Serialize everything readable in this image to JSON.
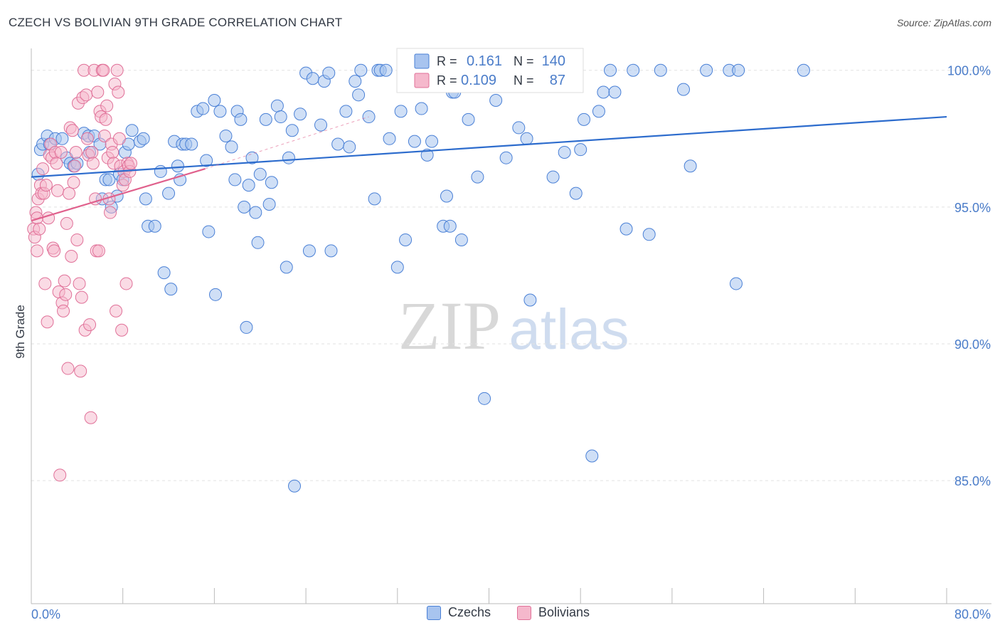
{
  "header": {
    "title": "CZECH VS BOLIVIAN 9TH GRADE CORRELATION CHART",
    "source": "Source: ZipAtlas.com"
  },
  "watermark": {
    "zip": "ZIP",
    "atlas": "atlas"
  },
  "colors": {
    "czech_fill": "#a8c4ef",
    "czech_stroke": "#4a80d6",
    "czech_line": "#2d6ccd",
    "bolivian_fill": "#f5b8cc",
    "bolivian_stroke": "#e07098",
    "bolivian_line": "#e0608c",
    "axis_value_text": "#4a7cc9",
    "grid": "#e2e2e2"
  },
  "legend": {
    "czech": {
      "r_label": "R =",
      "r_value": "0.161",
      "n_label": "N =",
      "n_value": "140"
    },
    "bolivian": {
      "r_label": "R =",
      "r_value": "0.109",
      "n_label": "N =",
      "n_value": "87"
    }
  },
  "bottom_legend": {
    "czech": "Czechs",
    "bolivian": "Bolivians"
  },
  "chart_data": {
    "type": "scatter",
    "title": "CZECH VS BOLIVIAN 9TH GRADE CORRELATION CHART",
    "xlabel": "",
    "ylabel": "9th Grade",
    "xlim": [
      0,
      80
    ],
    "ylim": [
      80.5,
      100.8
    ],
    "x_tick_labels": [
      "0.0%",
      "80.0%"
    ],
    "y_ticks": [
      85,
      90,
      95,
      100
    ],
    "y_tick_labels": [
      "85.0%",
      "90.0%",
      "95.0%",
      "100.0%"
    ],
    "x_minor_ticks": [
      0,
      8,
      16,
      24,
      32,
      40,
      48,
      56,
      64,
      72,
      80
    ],
    "grid": true,
    "series": [
      {
        "name": "Czechs",
        "R": 0.161,
        "N": 140,
        "trend": {
          "x": [
            0,
            80
          ],
          "y": [
            96.1,
            98.3
          ],
          "style": "solid"
        },
        "points": [
          [
            0.6,
            96.2
          ],
          [
            0.8,
            97.1
          ],
          [
            1.0,
            97.3
          ],
          [
            1.4,
            97.6
          ],
          [
            1.6,
            97.3
          ],
          [
            2.1,
            97.5
          ],
          [
            2.7,
            97.5
          ],
          [
            3.1,
            96.8
          ],
          [
            3.4,
            96.6
          ],
          [
            3.7,
            96.5
          ],
          [
            4.0,
            96.6
          ],
          [
            4.6,
            97.7
          ],
          [
            5.0,
            97.6
          ],
          [
            5.1,
            97.0
          ],
          [
            5.5,
            97.6
          ],
          [
            6.0,
            97.3
          ],
          [
            6.2,
            95.3
          ],
          [
            6.5,
            96.0
          ],
          [
            6.8,
            96.0
          ],
          [
            7.0,
            95.0
          ],
          [
            7.5,
            95.4
          ],
          [
            7.7,
            96.2
          ],
          [
            8.0,
            96.0
          ],
          [
            8.2,
            97.0
          ],
          [
            8.5,
            97.3
          ],
          [
            8.8,
            97.8
          ],
          [
            9.5,
            97.4
          ],
          [
            9.8,
            97.5
          ],
          [
            10.0,
            95.3
          ],
          [
            10.2,
            94.3
          ],
          [
            10.8,
            94.3
          ],
          [
            11.3,
            96.3
          ],
          [
            11.6,
            92.6
          ],
          [
            12.0,
            95.5
          ],
          [
            12.2,
            92.0
          ],
          [
            12.5,
            97.4
          ],
          [
            12.8,
            96.5
          ],
          [
            13.0,
            96.0
          ],
          [
            13.2,
            97.3
          ],
          [
            13.5,
            97.3
          ],
          [
            14.0,
            97.3
          ],
          [
            14.5,
            98.5
          ],
          [
            15.0,
            98.6
          ],
          [
            15.3,
            96.7
          ],
          [
            15.5,
            94.1
          ],
          [
            16.0,
            98.9
          ],
          [
            16.1,
            91.8
          ],
          [
            16.5,
            98.5
          ],
          [
            17.0,
            97.6
          ],
          [
            17.5,
            97.2
          ],
          [
            17.8,
            96.0
          ],
          [
            18.0,
            98.5
          ],
          [
            18.3,
            98.2
          ],
          [
            18.6,
            95.0
          ],
          [
            18.8,
            90.6
          ],
          [
            19.0,
            95.8
          ],
          [
            19.3,
            96.8
          ],
          [
            19.6,
            94.8
          ],
          [
            19.8,
            93.7
          ],
          [
            20.0,
            96.2
          ],
          [
            20.5,
            98.2
          ],
          [
            20.8,
            95.1
          ],
          [
            21.0,
            95.9
          ],
          [
            21.5,
            98.7
          ],
          [
            21.8,
            98.3
          ],
          [
            22.3,
            92.8
          ],
          [
            22.5,
            96.8
          ],
          [
            22.8,
            97.8
          ],
          [
            23.0,
            84.8
          ],
          [
            23.5,
            98.4
          ],
          [
            24.0,
            99.9
          ],
          [
            24.3,
            93.4
          ],
          [
            24.6,
            99.7
          ],
          [
            25.3,
            98.0
          ],
          [
            25.6,
            99.6
          ],
          [
            26.0,
            99.9
          ],
          [
            26.2,
            93.4
          ],
          [
            26.8,
            97.3
          ],
          [
            27.5,
            98.5
          ],
          [
            27.8,
            97.2
          ],
          [
            28.3,
            99.6
          ],
          [
            28.6,
            99.1
          ],
          [
            28.8,
            100.0
          ],
          [
            29.5,
            98.3
          ],
          [
            30.0,
            95.3
          ],
          [
            30.3,
            100.0
          ],
          [
            30.5,
            100.0
          ],
          [
            31.0,
            100.0
          ],
          [
            31.3,
            97.5
          ],
          [
            32.0,
            92.8
          ],
          [
            32.3,
            98.5
          ],
          [
            32.7,
            93.8
          ],
          [
            33.0,
            100.0
          ],
          [
            33.5,
            97.4
          ],
          [
            34.1,
            98.6
          ],
          [
            34.6,
            96.9
          ],
          [
            35.0,
            97.4
          ],
          [
            36.0,
            94.3
          ],
          [
            36.3,
            95.4
          ],
          [
            36.6,
            94.3
          ],
          [
            36.8,
            99.2
          ],
          [
            37.0,
            99.2
          ],
          [
            37.6,
            93.8
          ],
          [
            38.2,
            98.2
          ],
          [
            38.8,
            100.0
          ],
          [
            39.0,
            96.1
          ],
          [
            39.6,
            88.0
          ],
          [
            40.0,
            100.0
          ],
          [
            40.6,
            98.9
          ],
          [
            41.0,
            100.0
          ],
          [
            41.5,
            96.8
          ],
          [
            42.6,
            97.9
          ],
          [
            43.0,
            100.0
          ],
          [
            43.3,
            97.5
          ],
          [
            43.6,
            91.6
          ],
          [
            44.0,
            100.0
          ],
          [
            44.6,
            100.0
          ],
          [
            45.0,
            100.0
          ],
          [
            45.6,
            96.1
          ],
          [
            46.0,
            100.0
          ],
          [
            46.6,
            97.0
          ],
          [
            47.6,
            95.5
          ],
          [
            48.0,
            97.1
          ],
          [
            48.3,
            98.2
          ],
          [
            49.0,
            85.9
          ],
          [
            49.6,
            98.5
          ],
          [
            50.0,
            99.2
          ],
          [
            50.6,
            100.0
          ],
          [
            51.0,
            99.2
          ],
          [
            52.0,
            94.2
          ],
          [
            52.6,
            100.0
          ],
          [
            54.0,
            94.0
          ],
          [
            55.0,
            100.0
          ],
          [
            57.0,
            99.3
          ],
          [
            57.6,
            96.5
          ],
          [
            59.0,
            100.0
          ],
          [
            61.0,
            100.0
          ],
          [
            61.6,
            92.2
          ],
          [
            61.8,
            100.0
          ],
          [
            67.5,
            100.0
          ]
        ]
      },
      {
        "name": "Bolivians",
        "R": 0.109,
        "N": 87,
        "trend": {
          "x": [
            0,
            15.2
          ],
          "y": [
            94.5,
            96.4
          ],
          "style": "solid",
          "extension": {
            "x": [
              15.2,
              29.5
            ],
            "y": [
              96.4,
              98.3
            ],
            "style": "dashed"
          }
        },
        "points": [
          [
            0.2,
            94.2
          ],
          [
            0.3,
            93.9
          ],
          [
            0.4,
            94.8
          ],
          [
            0.5,
            93.4
          ],
          [
            0.5,
            94.6
          ],
          [
            0.6,
            95.3
          ],
          [
            0.7,
            94.2
          ],
          [
            0.8,
            95.8
          ],
          [
            0.9,
            95.5
          ],
          [
            1.0,
            96.4
          ],
          [
            1.1,
            95.5
          ],
          [
            1.2,
            92.2
          ],
          [
            1.3,
            95.8
          ],
          [
            1.4,
            90.8
          ],
          [
            1.5,
            94.6
          ],
          [
            1.6,
            96.9
          ],
          [
            1.7,
            97.3
          ],
          [
            1.8,
            96.8
          ],
          [
            1.9,
            93.5
          ],
          [
            2.0,
            93.4
          ],
          [
            2.1,
            97.0
          ],
          [
            2.2,
            96.6
          ],
          [
            2.3,
            95.6
          ],
          [
            2.4,
            91.9
          ],
          [
            2.5,
            85.2
          ],
          [
            2.6,
            97.0
          ],
          [
            2.7,
            91.5
          ],
          [
            2.8,
            91.2
          ],
          [
            2.9,
            92.3
          ],
          [
            3.0,
            91.8
          ],
          [
            3.1,
            94.4
          ],
          [
            3.2,
            89.1
          ],
          [
            3.3,
            95.5
          ],
          [
            3.4,
            97.9
          ],
          [
            3.5,
            93.2
          ],
          [
            3.6,
            97.8
          ],
          [
            3.7,
            95.9
          ],
          [
            3.8,
            96.5
          ],
          [
            3.9,
            97.0
          ],
          [
            4.0,
            93.8
          ],
          [
            4.1,
            98.8
          ],
          [
            4.2,
            92.2
          ],
          [
            4.3,
            89.0
          ],
          [
            4.4,
            91.7
          ],
          [
            4.5,
            99.0
          ],
          [
            4.6,
            100.0
          ],
          [
            4.7,
            90.5
          ],
          [
            4.8,
            99.1
          ],
          [
            4.9,
            97.5
          ],
          [
            5.0,
            96.9
          ],
          [
            5.1,
            90.7
          ],
          [
            5.2,
            87.3
          ],
          [
            5.3,
            97.0
          ],
          [
            5.4,
            96.6
          ],
          [
            5.5,
            100.0
          ],
          [
            5.6,
            95.3
          ],
          [
            5.7,
            93.4
          ],
          [
            5.8,
            99.2
          ],
          [
            5.9,
            93.4
          ],
          [
            6.0,
            98.5
          ],
          [
            6.1,
            98.3
          ],
          [
            6.2,
            100.0
          ],
          [
            6.3,
            100.0
          ],
          [
            6.4,
            97.6
          ],
          [
            6.5,
            98.2
          ],
          [
            6.6,
            98.7
          ],
          [
            6.7,
            96.8
          ],
          [
            6.8,
            95.3
          ],
          [
            6.9,
            94.8
          ],
          [
            7.0,
            97.3
          ],
          [
            7.1,
            97.0
          ],
          [
            7.2,
            96.6
          ],
          [
            7.3,
            99.5
          ],
          [
            7.4,
            91.2
          ],
          [
            7.5,
            100.0
          ],
          [
            7.6,
            99.2
          ],
          [
            7.7,
            97.5
          ],
          [
            7.8,
            96.5
          ],
          [
            7.9,
            90.5
          ],
          [
            8.0,
            95.8
          ],
          [
            8.1,
            96.3
          ],
          [
            8.2,
            96.0
          ],
          [
            8.3,
            92.2
          ],
          [
            8.4,
            96.6
          ],
          [
            8.5,
            96.5
          ],
          [
            8.6,
            96.3
          ],
          [
            8.7,
            96.6
          ]
        ]
      }
    ]
  }
}
